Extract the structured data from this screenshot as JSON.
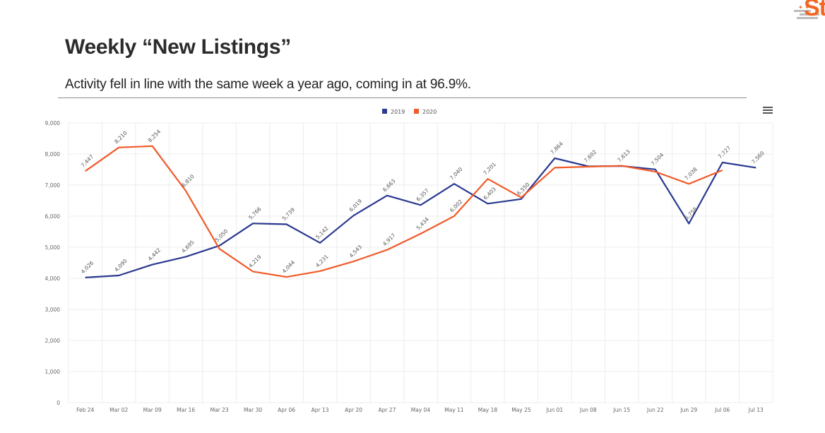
{
  "header": {
    "title": "Weekly “New Listings”",
    "subtitle": "Activity fell in line with the same week a year ago, coming in at 96.9%.",
    "logo_text": "St"
  },
  "icons": {
    "menu": "hamburger-menu-icon",
    "logo": "brand-logo-icon"
  },
  "chart_data": {
    "type": "line",
    "categories": [
      "Feb 24",
      "Mar 02",
      "Mar 09",
      "Mar 16",
      "Mar 23",
      "Mar 30",
      "Apr 06",
      "Apr 13",
      "Apr 20",
      "Apr 27",
      "May 04",
      "May 11",
      "May 18",
      "May 25",
      "Jun 01",
      "Jun 08",
      "Jun 15",
      "Jun 22",
      "Jun 29",
      "Jul 06",
      "Jul 13"
    ],
    "series": [
      {
        "name": "2019",
        "color": "#2b3990",
        "values": [
          4026,
          4090,
          4442,
          4695,
          5050,
          5766,
          5739,
          5142,
          6019,
          6663,
          6357,
          7040,
          6403,
          6550,
          7864,
          7602,
          7613,
          7504,
          5758,
          7727,
          7560
        ],
        "labels": [
          "4,026",
          "4,090",
          "4,442",
          "4,695",
          "5,050",
          "5,766",
          "5,739",
          "5,142",
          "6,019",
          "6,663",
          "6,357",
          "7,040",
          "6,403",
          "6,550",
          "7,864",
          "7,602",
          "7,613",
          "7,504",
          "5,758",
          "7,727",
          "7,560"
        ]
      },
      {
        "name": "2020",
        "color": "#f15a29",
        "values": [
          7447,
          8210,
          8254,
          6810,
          4950,
          4219,
          4044,
          4231,
          4543,
          4917,
          5434,
          6002,
          7201,
          6600,
          7560,
          7590,
          7620,
          7430,
          7038,
          7480,
          null
        ],
        "labels": [
          "7,447",
          "8,210",
          "8,254",
          "6,810",
          "",
          "4,219",
          "4,044",
          "4,231",
          "4,543",
          "4,917",
          "5,434",
          "6,002",
          "7,201",
          "",
          "",
          "",
          "",
          "",
          "7,038",
          "",
          ""
        ]
      }
    ],
    "y_ticks": [
      "0",
      "1,000",
      "2,000",
      "3,000",
      "4,000",
      "5,000",
      "6,000",
      "7,000",
      "8,000",
      "9,000"
    ],
    "ylim": [
      0,
      9000
    ],
    "legend_position": "top-center",
    "grid": true
  }
}
